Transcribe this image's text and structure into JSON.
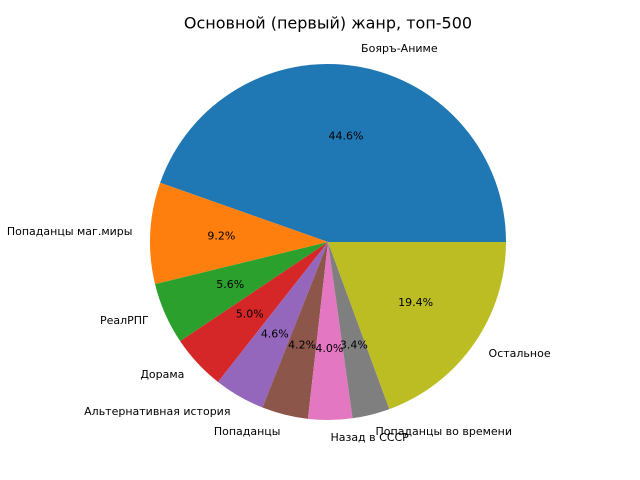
{
  "chart_data": {
    "type": "pie",
    "title": "Основной (первый) жанр, топ-500",
    "categories": [
      "Бояръ-Аниме",
      "Попаданцы маг.миры",
      "РеалРПГ",
      "Дорама",
      "Альтернативная история",
      "Попаданцы",
      "Назад в СССР",
      "Попаданцы во времени",
      "Остальное"
    ],
    "values": [
      44.6,
      9.2,
      5.6,
      5.0,
      4.6,
      4.2,
      4.0,
      3.4,
      19.4
    ],
    "value_labels": [
      "44.6%",
      "9.2%",
      "5.6%",
      "5.0%",
      "4.6%",
      "4.2%",
      "4.0%",
      "3.4%",
      "19.4%"
    ],
    "colors": [
      "#1f77b4",
      "#ff7f0e",
      "#2ca02c",
      "#d62728",
      "#9467bd",
      "#8c564b",
      "#e377c2",
      "#7f7f7f",
      "#bcbd22"
    ]
  }
}
